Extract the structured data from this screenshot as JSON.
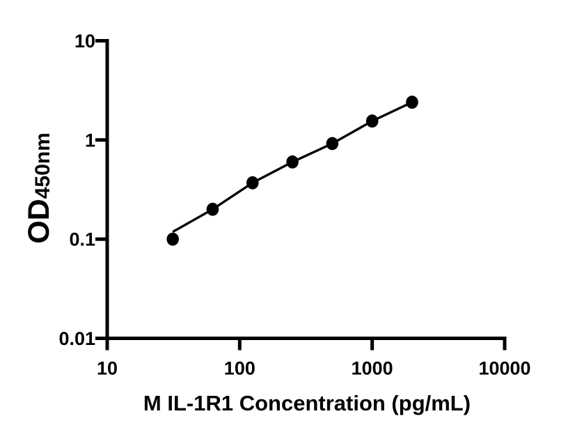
{
  "figure": {
    "background_color": "#ffffff",
    "ink_color": "#000000"
  },
  "chart_data": {
    "type": "scatter",
    "title": "",
    "xlabel": "M IL-1R1 Concentration (pg/mL)",
    "ylabel_main": "OD",
    "ylabel_sub": "450nm",
    "x_scale": "log",
    "y_scale": "log",
    "xlim": [
      10,
      10000
    ],
    "ylim": [
      0.01,
      10
    ],
    "x_ticks": [
      {
        "value": 10,
        "label": "10"
      },
      {
        "value": 100,
        "label": "100"
      },
      {
        "value": 1000,
        "label": "1000"
      },
      {
        "value": 10000,
        "label": "10000"
      }
    ],
    "y_ticks": [
      {
        "value": 10,
        "label": "10"
      },
      {
        "value": 1,
        "label": "1"
      },
      {
        "value": 0.1,
        "label": "0.1"
      },
      {
        "value": 0.01,
        "label": "0.01"
      }
    ],
    "series": [
      {
        "name": "standard-curve",
        "marker": "filled-circle",
        "marker_color": "#000000",
        "line_color": "#000000",
        "points": [
          {
            "x": 31.25,
            "y": 0.1
          },
          {
            "x": 62.5,
            "y": 0.2
          },
          {
            "x": 125,
            "y": 0.37
          },
          {
            "x": 250,
            "y": 0.6
          },
          {
            "x": 500,
            "y": 0.92
          },
          {
            "x": 1000,
            "y": 1.55
          },
          {
            "x": 2000,
            "y": 2.4
          }
        ]
      }
    ],
    "grid": false,
    "legend": null
  }
}
